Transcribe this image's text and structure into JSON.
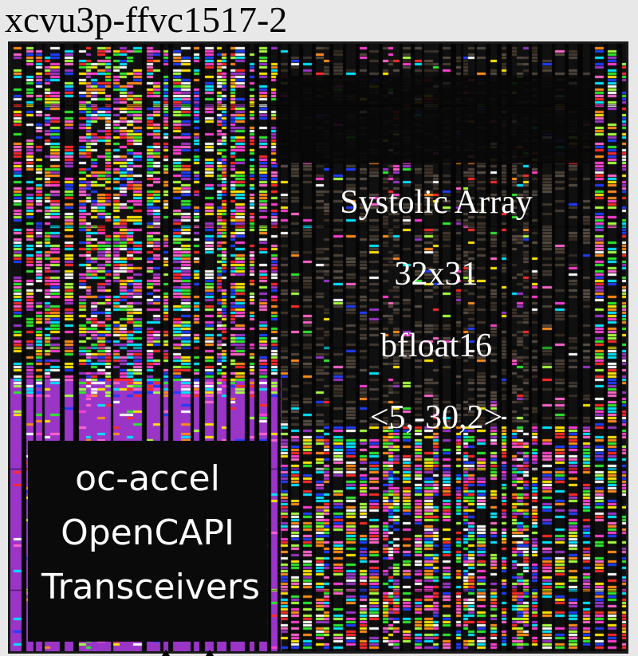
{
  "title": "xcvu3p-ffvc1517-2",
  "systolic_block": {
    "lines": [
      "Systolic Array",
      "32x31",
      "bfloat16",
      "<5,-30,2>"
    ]
  },
  "oc_accel_block": {
    "lines": [
      "oc-accel",
      "OpenCAPI",
      "Transceivers"
    ]
  },
  "colors": {
    "background": "#e8e8e8",
    "die": "#101010",
    "purple_region": "#9a35c8",
    "palette": [
      "#ff3fd2",
      "#ffe600",
      "#00e5ff",
      "#1f3dff",
      "#ff2a2a",
      "#2ee82e",
      "#ff8c1a",
      "#ff66cc",
      "#a8ff3e",
      "#9a35c8",
      "#ffffff"
    ]
  }
}
